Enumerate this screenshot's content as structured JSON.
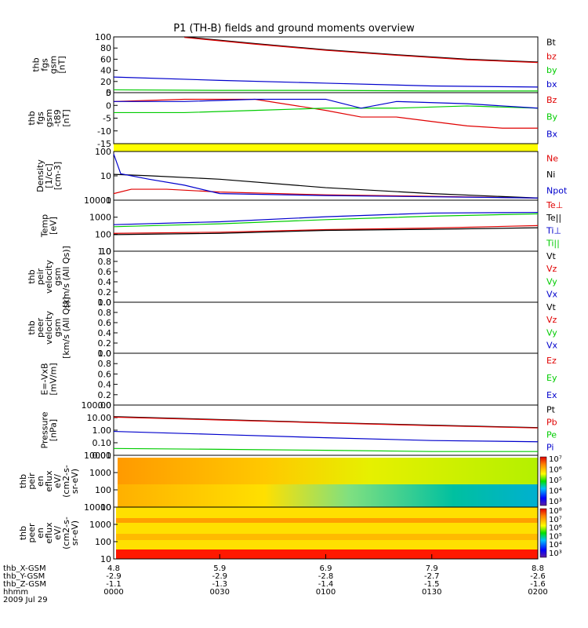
{
  "title": "P1 (TH-B) fields and ground moments overview",
  "colors": {
    "black": "#000000",
    "red": "#e00000",
    "green": "#00cc00",
    "blue": "#0000cc",
    "yellow": "#ffff00"
  },
  "panels": [
    {
      "key": "fgs",
      "ylabel": [
        "thb",
        "fgs",
        "gsm",
        "[nT]"
      ],
      "ticks": [
        "100",
        "80",
        "60",
        "40",
        "20",
        "0"
      ],
      "legend": [
        {
          "t": "Bt",
          "c": "black"
        },
        {
          "t": "bz",
          "c": "red"
        },
        {
          "t": "by",
          "c": "green"
        },
        {
          "t": "bx",
          "c": "blue"
        }
      ]
    },
    {
      "key": "fgs_dt",
      "ylabel": [
        "thb",
        "fgs",
        "gsm",
        "-t89",
        "[nT]"
      ],
      "ticks": [
        "5",
        "0",
        "-5",
        "-10",
        "-15"
      ],
      "legend": [
        {
          "t": "Bz",
          "c": "red"
        },
        {
          "t": "By",
          "c": "green"
        },
        {
          "t": "Bx",
          "c": "blue"
        }
      ]
    },
    {
      "key": "density",
      "ylabel": [
        "Density",
        "[1/cc]",
        "[cm-3]"
      ],
      "ticks": [
        "100",
        "10",
        "1"
      ],
      "legend": [
        {
          "t": "Ne",
          "c": "red"
        },
        {
          "t": "Ni",
          "c": "black"
        },
        {
          "t": "Npot",
          "c": "blue"
        }
      ]
    },
    {
      "key": "temp",
      "ylabel": [
        "Temp",
        "[eV]"
      ],
      "ticks": [
        "10000",
        "1000",
        "100",
        "10"
      ],
      "legend": [
        {
          "t": "Te⊥",
          "c": "red"
        },
        {
          "t": "Te||",
          "c": "black"
        },
        {
          "t": "Ti⊥",
          "c": "blue"
        },
        {
          "t": "Ti||",
          "c": "green"
        }
      ]
    },
    {
      "key": "vi",
      "ylabel": [
        "thb",
        "peir",
        "velocity",
        "gsm",
        "[km/s (All Qs)]"
      ],
      "ticks": [
        "1.0",
        "0.8",
        "0.6",
        "0.4",
        "0.2",
        "0.0"
      ],
      "legend": [
        {
          "t": "Vt",
          "c": "black"
        },
        {
          "t": "Vz",
          "c": "red"
        },
        {
          "t": "Vy",
          "c": "green"
        },
        {
          "t": "Vx",
          "c": "blue"
        }
      ]
    },
    {
      "key": "ve",
      "ylabel": [
        "thb",
        "peer",
        "velocity",
        "gsm",
        "[km/s (All Qs)]"
      ],
      "ticks": [
        "1.0",
        "0.8",
        "0.6",
        "0.4",
        "0.2",
        "0.0"
      ],
      "legend": [
        {
          "t": "Vt",
          "c": "black"
        },
        {
          "t": "Vz",
          "c": "red"
        },
        {
          "t": "Vy",
          "c": "green"
        },
        {
          "t": "Vx",
          "c": "blue"
        }
      ]
    },
    {
      "key": "efield",
      "ylabel": [
        "E=-VxB",
        "[mV/m]"
      ],
      "ticks": [
        "1.0",
        "0.8",
        "0.6",
        "0.4",
        "0.2",
        "0.0"
      ],
      "legend": [
        {
          "t": "Ez",
          "c": "red"
        },
        {
          "t": "Ey",
          "c": "green"
        },
        {
          "t": "Ex",
          "c": "blue"
        }
      ]
    },
    {
      "key": "pressure",
      "ylabel": [
        "Pressure",
        "[nPa]"
      ],
      "ticks": [
        "100.00",
        "10.00",
        "1.00",
        "0.10",
        "0.01"
      ],
      "legend": [
        {
          "t": "Pt",
          "c": "black"
        },
        {
          "t": "Pb",
          "c": "red"
        },
        {
          "t": "Pe",
          "c": "green"
        },
        {
          "t": "Pi",
          "c": "blue"
        }
      ]
    },
    {
      "key": "ion_spec",
      "ylabel": [
        "thb",
        "peir",
        "en",
        "eflux",
        "eV/",
        "(cm2-s-",
        "sr-eV)"
      ],
      "ticks": [
        "10000",
        "1000",
        "100",
        "10"
      ],
      "colorbar": [
        "10⁷",
        "10⁶",
        "10⁵",
        "10⁴",
        "10³"
      ]
    },
    {
      "key": "elec_spec",
      "ylabel": [
        "thb",
        "peer",
        "en",
        "eflux",
        "eV/",
        "(cm2-s-",
        "sr-eV)"
      ],
      "ticks": [
        "10000",
        "1000",
        "100",
        "10"
      ],
      "colorbar": [
        "10⁸",
        "10⁷",
        "10⁶",
        "10⁵",
        "10⁴",
        "10³"
      ]
    }
  ],
  "ephemeris": {
    "labels": [
      "thb_X-GSM",
      "thb_Y-GSM",
      "thb_Z-GSM",
      "hhmm",
      "2009 Jul 29"
    ],
    "columns": [
      [
        "4.8",
        "-2.9",
        "-1.1",
        "0000"
      ],
      [
        "5.9",
        "-2.9",
        "-1.3",
        "0030"
      ],
      [
        "6.9",
        "-2.8",
        "-1.4",
        "0100"
      ],
      [
        "7.9",
        "-2.7",
        "-1.5",
        "0130"
      ],
      [
        "8.8",
        "-2.6",
        "-1.6",
        "0200"
      ]
    ]
  },
  "chart_data": {
    "type": "line",
    "x_units": "minutes since 2009 Jul 29 0000 UT",
    "xlim": [
      0,
      120
    ],
    "series": [
      {
        "panel": "fgs",
        "name": "Bt",
        "color": "black",
        "x": [
          20,
          40,
          60,
          80,
          100,
          120
        ],
        "y": [
          100,
          88,
          77,
          68,
          60,
          55
        ]
      },
      {
        "panel": "fgs",
        "name": "bz",
        "color": "red",
        "x": [
          20,
          40,
          60,
          80,
          100,
          120
        ],
        "y": [
          99,
          87,
          76,
          67,
          59,
          54
        ]
      },
      {
        "panel": "fgs",
        "name": "by",
        "color": "green",
        "x": [
          0,
          30,
          60,
          90,
          120
        ],
        "y": [
          5,
          4,
          4,
          3,
          3
        ]
      },
      {
        "panel": "fgs",
        "name": "bx",
        "color": "blue",
        "x": [
          0,
          30,
          60,
          90,
          120
        ],
        "y": [
          28,
          22,
          17,
          12,
          10
        ]
      },
      {
        "panel": "fgs_dt",
        "name": "Bz",
        "color": "red",
        "x": [
          0,
          20,
          40,
          60,
          70,
          80,
          90,
          100,
          110,
          120
        ],
        "y": [
          2,
          3,
          3,
          -2,
          -5,
          -5,
          -7,
          -9,
          -10,
          -10
        ]
      },
      {
        "panel": "fgs_dt",
        "name": "By",
        "color": "green",
        "x": [
          0,
          20,
          40,
          60,
          80,
          100,
          120
        ],
        "y": [
          -3,
          -3,
          -2,
          -1,
          -1,
          0,
          -1
        ]
      },
      {
        "panel": "fgs_dt",
        "name": "Bx",
        "color": "blue",
        "x": [
          0,
          20,
          40,
          60,
          70,
          80,
          100,
          120
        ],
        "y": [
          2,
          2,
          3,
          3,
          -1,
          2,
          1,
          -1
        ]
      },
      {
        "panel": "density",
        "name": "Ne",
        "color": "red",
        "x": [
          0,
          5,
          15,
          30,
          60,
          90,
          120
        ],
        "y": [
          1.5,
          2.5,
          2.5,
          1.8,
          1.3,
          1.1,
          0.9
        ]
      },
      {
        "panel": "density",
        "name": "Ni",
        "color": "black",
        "x": [
          0,
          10,
          30,
          60,
          90,
          120
        ],
        "y": [
          14,
          12,
          8,
          3,
          1.5,
          0.9
        ]
      },
      {
        "panel": "density",
        "name": "Npot",
        "color": "blue",
        "x": [
          0,
          2,
          10,
          20,
          30,
          60,
          120
        ],
        "y": [
          150,
          15,
          8,
          4,
          1.5,
          1.2,
          0.9
        ]
      },
      {
        "panel": "temp",
        "name": "Te⊥",
        "color": "red",
        "x": [
          0,
          30,
          60,
          90,
          120
        ],
        "y": [
          120,
          140,
          200,
          250,
          350
        ]
      },
      {
        "panel": "temp",
        "name": "Te||",
        "color": "black",
        "x": [
          0,
          30,
          60,
          90,
          120
        ],
        "y": [
          100,
          120,
          180,
          210,
          260
        ]
      },
      {
        "panel": "temp",
        "name": "Ti⊥",
        "color": "blue",
        "x": [
          0,
          30,
          60,
          90,
          120
        ],
        "y": [
          400,
          600,
          1200,
          2000,
          2200
        ]
      },
      {
        "panel": "temp",
        "name": "Ti||",
        "color": "green",
        "x": [
          0,
          30,
          60,
          90,
          120
        ],
        "y": [
          300,
          450,
          800,
          1300,
          1800
        ]
      },
      {
        "panel": "pressure",
        "name": "Pt",
        "color": "black",
        "x": [
          0,
          30,
          60,
          90,
          120
        ],
        "y": [
          12,
          7,
          4,
          2.5,
          1.6
        ]
      },
      {
        "panel": "pressure",
        "name": "Pb",
        "color": "red",
        "x": [
          0,
          30,
          60,
          90,
          120
        ],
        "y": [
          11,
          6.5,
          3.8,
          2.3,
          1.5
        ]
      },
      {
        "panel": "pressure",
        "name": "Pe",
        "color": "green",
        "x": [
          0,
          30,
          60,
          90,
          120
        ],
        "y": [
          0.035,
          0.03,
          0.025,
          0.02,
          0.02
        ]
      },
      {
        "panel": "pressure",
        "name": "Pi",
        "color": "blue",
        "x": [
          0,
          30,
          60,
          90,
          120
        ],
        "y": [
          0.8,
          0.45,
          0.25,
          0.15,
          0.12
        ]
      }
    ]
  }
}
